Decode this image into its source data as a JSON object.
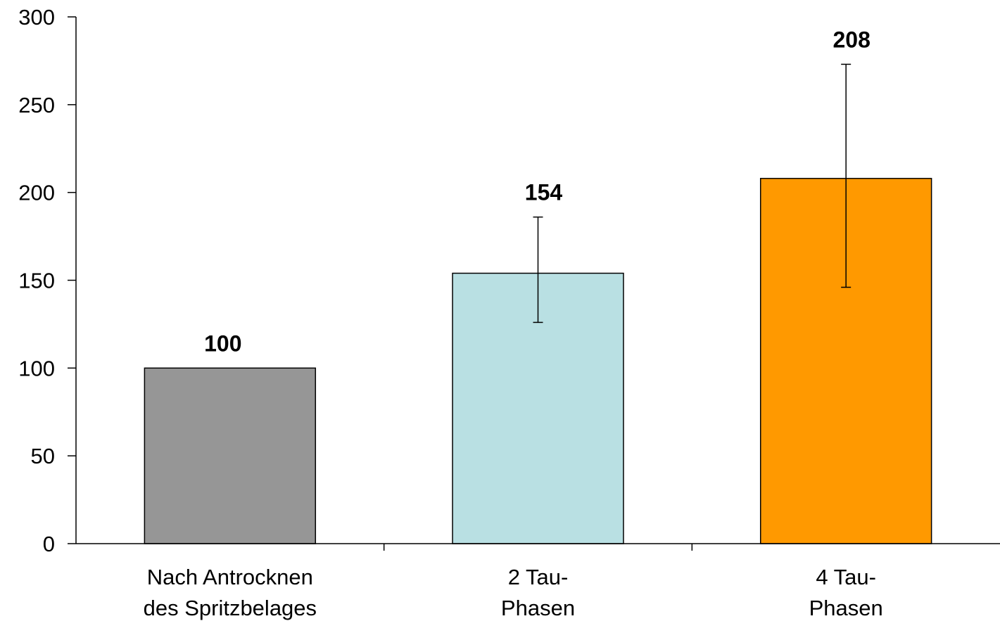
{
  "chart_data": {
    "type": "bar",
    "title": "",
    "xlabel": "",
    "ylabel": "",
    "ylim": [
      0,
      300
    ],
    "yticks": [
      0,
      50,
      100,
      150,
      200,
      250,
      300
    ],
    "grid": false,
    "legend": "none",
    "categories": [
      [
        "Nach Antrocknen",
        "des Spritzbelages"
      ],
      [
        "2 Tau-",
        "Phasen"
      ],
      [
        "4 Tau-",
        "Phasen"
      ]
    ],
    "values": [
      100,
      154,
      208
    ],
    "value_labels": [
      "100",
      "154",
      "208"
    ],
    "error_bars": [
      null,
      {
        "low": 126,
        "high": 186
      },
      {
        "low": 146,
        "high": 273
      }
    ],
    "colors": [
      "#969696",
      "#b9e0e3",
      "#ff9900"
    ]
  }
}
